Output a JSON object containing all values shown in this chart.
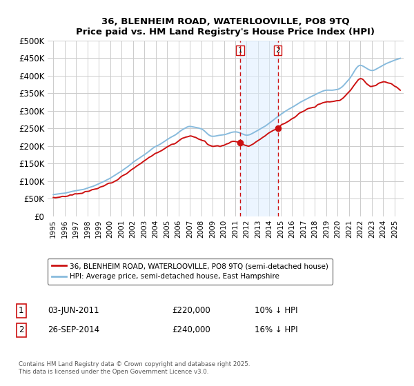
{
  "title_line1": "36, BLENHEIM ROAD, WATERLOOVILLE, PO8 9TQ",
  "title_line2": "Price paid vs. HM Land Registry's House Price Index (HPI)",
  "ylim": [
    0,
    500000
  ],
  "yticks": [
    0,
    50000,
    100000,
    150000,
    200000,
    250000,
    300000,
    350000,
    400000,
    450000,
    500000
  ],
  "xlim_start": 1994.5,
  "xlim_end": 2025.8,
  "hpi_color": "#88bbdd",
  "price_color": "#cc1111",
  "purchase1_date": 2011.42,
  "purchase2_date": 2014.74,
  "purchase1_price": 220000,
  "purchase2_price": 240000,
  "vline_color": "#cc1111",
  "vline_shade_color": "#ddeeff",
  "legend_label1": "36, BLENHEIM ROAD, WATERLOOVILLE, PO8 9TQ (semi-detached house)",
  "legend_label2": "HPI: Average price, semi-detached house, East Hampshire",
  "annotation1_num": "1",
  "annotation1_date": "03-JUN-2011",
  "annotation1_price": "£220,000",
  "annotation1_hpi": "10% ↓ HPI",
  "annotation2_num": "2",
  "annotation2_date": "26-SEP-2014",
  "annotation2_price": "£240,000",
  "annotation2_hpi": "16% ↓ HPI",
  "footer": "Contains HM Land Registry data © Crown copyright and database right 2025.\nThis data is licensed under the Open Government Licence v3.0.",
  "bg_color": "#ffffff",
  "grid_color": "#cccccc",
  "hpi_waypoints_t": [
    1995,
    1997,
    1998,
    1999,
    2000,
    2001,
    2002,
    2003,
    2004,
    2005,
    2006,
    2007,
    2008,
    2009,
    2010,
    2011,
    2012,
    2013,
    2014,
    2015,
    2016,
    2017,
    2018,
    2019,
    2020,
    2021,
    2022,
    2023,
    2024,
    2025.5
  ],
  "hpi_waypoints_v": [
    62000,
    72000,
    80000,
    92000,
    108000,
    128000,
    152000,
    175000,
    198000,
    218000,
    238000,
    255000,
    248000,
    228000,
    232000,
    240000,
    230000,
    245000,
    265000,
    290000,
    310000,
    330000,
    345000,
    358000,
    360000,
    390000,
    430000,
    415000,
    430000,
    450000
  ],
  "price_waypoints_t": [
    1995,
    1997,
    1998,
    1999,
    2000,
    2001,
    2002,
    2003,
    2004,
    2005,
    2006,
    2007,
    2008,
    2009,
    2010,
    2011,
    2012,
    2013,
    2014,
    2015,
    2016,
    2017,
    2018,
    2019,
    2020,
    2021,
    2022,
    2023,
    2024,
    2025.5
  ],
  "price_waypoints_v": [
    52000,
    63000,
    70000,
    80000,
    95000,
    112000,
    135000,
    158000,
    178000,
    196000,
    214000,
    228000,
    218000,
    200000,
    202000,
    215000,
    200000,
    215000,
    238000,
    258000,
    278000,
    298000,
    312000,
    325000,
    328000,
    355000,
    390000,
    370000,
    382000,
    358000
  ]
}
